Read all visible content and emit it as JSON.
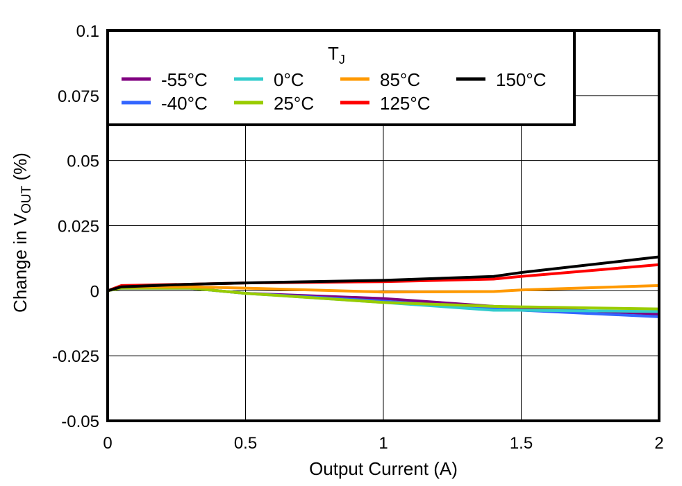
{
  "chart_data": {
    "type": "line",
    "title": "",
    "xlabel": "Output Current (A)",
    "ylabel_main": "Change in V",
    "ylabel_sub": "OUT",
    "ylabel_tail": " (%)",
    "ylabel": "Change in VOUT (%)",
    "xlim": [
      0,
      2
    ],
    "ylim": [
      -0.05,
      0.1
    ],
    "x_ticks": [
      "0",
      "0.5",
      "1",
      "1.5",
      "2"
    ],
    "y_ticks": [
      "0.1",
      "0.075",
      "0.05",
      "0.025",
      "0",
      "-0.025",
      "-0.05"
    ],
    "grid": true,
    "legend_title": "TJ",
    "legend_title_main": "T",
    "legend_title_sub": "J",
    "legend_position": "top-left inside",
    "x": [
      0,
      0.05,
      0.3,
      0.5,
      1.0,
      1.4,
      1.5,
      2.0
    ],
    "series": [
      {
        "name": "-55°C",
        "color": "#800080",
        "values": [
          0,
          0.001,
          0.001,
          -0.001,
          -0.003,
          -0.006,
          -0.0065,
          -0.009
        ]
      },
      {
        "name": "-40°C",
        "color": "#3366ff",
        "values": [
          0,
          0.001,
          0.001,
          -0.001,
          -0.004,
          -0.007,
          -0.0075,
          -0.01
        ]
      },
      {
        "name": "0°C",
        "color": "#33cccc",
        "values": [
          0,
          0.001,
          0.001,
          -0.001,
          -0.0045,
          -0.0075,
          -0.0075,
          -0.008
        ]
      },
      {
        "name": "25°C",
        "color": "#99cc00",
        "values": [
          0,
          0.001,
          0.001,
          -0.001,
          -0.0045,
          -0.006,
          -0.0062,
          -0.007
        ]
      },
      {
        "name": "85°C",
        "color": "#ff9900",
        "values": [
          0,
          0.0015,
          0.0015,
          0.001,
          -0.0005,
          -0.0003,
          0.0003,
          0.002
        ]
      },
      {
        "name": "125°C",
        "color": "#ff0000",
        "values": [
          0,
          0.002,
          0.0025,
          0.003,
          0.0035,
          0.0045,
          0.0055,
          0.01
        ]
      },
      {
        "name": "150°C",
        "color": "#000000",
        "values": [
          0,
          0.0015,
          0.0025,
          0.003,
          0.004,
          0.0055,
          0.007,
          0.013
        ]
      }
    ]
  }
}
